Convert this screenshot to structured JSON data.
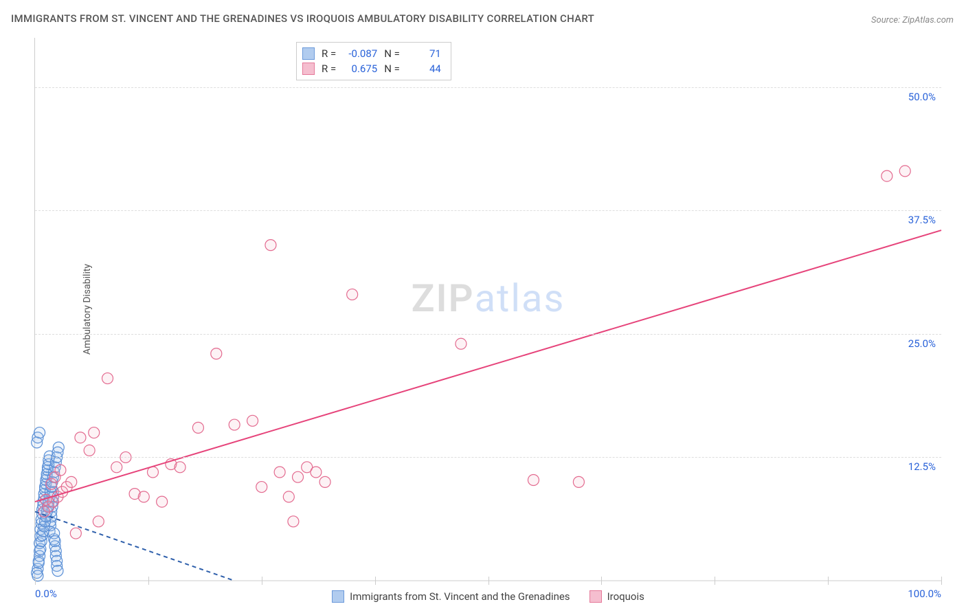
{
  "title": "IMMIGRANTS FROM ST. VINCENT AND THE GRENADINES VS IROQUOIS AMBULATORY DISABILITY CORRELATION CHART",
  "source": "Source: ZipAtlas.com",
  "y_axis_label": "Ambulatory Disability",
  "watermark_zip": "ZIP",
  "watermark_atlas": "atlas",
  "chart": {
    "type": "scatter",
    "background_color": "#ffffff",
    "grid_color": "#dddddd",
    "axis_color": "#cccccc",
    "label_color": "#2962d9",
    "x_range": [
      0,
      100
    ],
    "y_range": [
      0,
      55
    ],
    "y_ticks": [
      {
        "v": 12.5,
        "label": "12.5%"
      },
      {
        "v": 25.0,
        "label": "25.0%"
      },
      {
        "v": 37.5,
        "label": "37.5%"
      },
      {
        "v": 50.0,
        "label": "50.0%"
      }
    ],
    "x_ticks_minor": [
      0,
      12.5,
      25,
      37.5,
      50,
      62.5,
      75,
      87.5,
      100
    ],
    "x_tick_labels": [
      {
        "v": 0,
        "label": "0.0%"
      },
      {
        "v": 100,
        "label": "100.0%"
      }
    ],
    "marker_radius": 8,
    "marker_stroke_width": 1.2,
    "marker_fill_opacity": 0.18,
    "trend_line_width": 2,
    "series": [
      {
        "id": "svg_series",
        "name": "Immigrants from St. Vincent and the Grenadines",
        "stroke": "#5a8fd6",
        "fill": "#a9c7ee",
        "trend_stroke": "#2e5fab",
        "trend_dash": "6 5",
        "R": "-0.087",
        "N": "71",
        "trend": {
          "x1": 0,
          "y1": 7.0,
          "x2": 22,
          "y2": 0.0
        },
        "points": [
          [
            0.3,
            1.2
          ],
          [
            0.4,
            2.0
          ],
          [
            0.5,
            3.0
          ],
          [
            0.5,
            3.8
          ],
          [
            0.6,
            4.5
          ],
          [
            0.6,
            5.2
          ],
          [
            0.7,
            5.8
          ],
          [
            0.7,
            6.2
          ],
          [
            0.8,
            6.8
          ],
          [
            0.8,
            7.2
          ],
          [
            0.9,
            7.6
          ],
          [
            0.9,
            8.0
          ],
          [
            1.0,
            8.4
          ],
          [
            1.0,
            8.8
          ],
          [
            1.1,
            9.2
          ],
          [
            1.1,
            9.5
          ],
          [
            1.2,
            9.8
          ],
          [
            1.2,
            10.2
          ],
          [
            1.3,
            10.5
          ],
          [
            1.3,
            10.8
          ],
          [
            1.4,
            11.2
          ],
          [
            1.4,
            11.5
          ],
          [
            1.5,
            11.8
          ],
          [
            1.5,
            12.2
          ],
          [
            1.6,
            12.6
          ],
          [
            1.6,
            5.0
          ],
          [
            1.7,
            5.6
          ],
          [
            1.7,
            6.0
          ],
          [
            1.8,
            6.5
          ],
          [
            1.8,
            7.0
          ],
          [
            1.9,
            7.5
          ],
          [
            1.9,
            8.0
          ],
          [
            2.0,
            8.5
          ],
          [
            2.0,
            9.0
          ],
          [
            2.1,
            4.2
          ],
          [
            2.1,
            4.8
          ],
          [
            2.2,
            3.5
          ],
          [
            2.2,
            4.0
          ],
          [
            2.3,
            3.0
          ],
          [
            2.3,
            2.5
          ],
          [
            2.4,
            2.0
          ],
          [
            2.4,
            1.5
          ],
          [
            2.5,
            1.0
          ],
          [
            2.6,
            13.5
          ],
          [
            0.2,
            0.8
          ],
          [
            0.3,
            0.5
          ],
          [
            0.4,
            1.8
          ],
          [
            0.5,
            2.5
          ],
          [
            0.6,
            3.2
          ],
          [
            0.7,
            4.0
          ],
          [
            0.8,
            4.6
          ],
          [
            0.9,
            5.0
          ],
          [
            1.0,
            5.5
          ],
          [
            1.1,
            6.0
          ],
          [
            1.2,
            6.5
          ],
          [
            1.3,
            7.0
          ],
          [
            1.4,
            7.5
          ],
          [
            1.5,
            8.0
          ],
          [
            1.6,
            8.5
          ],
          [
            1.7,
            9.0
          ],
          [
            1.8,
            9.5
          ],
          [
            1.9,
            10.0
          ],
          [
            2.0,
            10.5
          ],
          [
            2.1,
            11.0
          ],
          [
            2.2,
            11.5
          ],
          [
            2.3,
            12.0
          ],
          [
            2.4,
            12.5
          ],
          [
            2.5,
            13.0
          ],
          [
            0.2,
            14.0
          ],
          [
            0.3,
            14.5
          ],
          [
            0.5,
            15.0
          ]
        ]
      },
      {
        "id": "iroquois_series",
        "name": "Iroquois",
        "stroke": "#e36a8f",
        "fill": "#f5b8ca",
        "trend_stroke": "#e6437a",
        "trend_dash": "none",
        "R": "0.675",
        "N": "44",
        "trend": {
          "x1": 0,
          "y1": 8.0,
          "x2": 100,
          "y2": 35.5
        },
        "points": [
          [
            1.5,
            7.5
          ],
          [
            2.0,
            8.0
          ],
          [
            2.5,
            8.5
          ],
          [
            3.0,
            9.0
          ],
          [
            3.5,
            9.5
          ],
          [
            4.0,
            10.0
          ],
          [
            5.0,
            14.5
          ],
          [
            6.0,
            13.2
          ],
          [
            7.0,
            6.0
          ],
          [
            8.0,
            20.5
          ],
          [
            9.0,
            11.5
          ],
          [
            10.0,
            12.5
          ],
          [
            11.0,
            8.8
          ],
          [
            12.0,
            8.5
          ],
          [
            13.0,
            11.0
          ],
          [
            14.0,
            8.0
          ],
          [
            15.0,
            11.8
          ],
          [
            16.0,
            11.5
          ],
          [
            18.0,
            15.5
          ],
          [
            20.0,
            23.0
          ],
          [
            22.0,
            15.8
          ],
          [
            24.0,
            16.2
          ],
          [
            25.0,
            9.5
          ],
          [
            26.0,
            34.0
          ],
          [
            27.0,
            11.0
          ],
          [
            28.0,
            8.5
          ],
          [
            29.0,
            10.5
          ],
          [
            30.0,
            11.5
          ],
          [
            31.0,
            11.0
          ],
          [
            32.0,
            10.0
          ],
          [
            28.5,
            6.0
          ],
          [
            35.0,
            29.0
          ],
          [
            47.0,
            24.0
          ],
          [
            55.0,
            10.2
          ],
          [
            60.0,
            10.0
          ],
          [
            4.5,
            4.8
          ],
          [
            6.5,
            15.0
          ],
          [
            1.0,
            7.0
          ],
          [
            1.2,
            8.2
          ],
          [
            1.8,
            9.8
          ],
          [
            2.2,
            10.5
          ],
          [
            2.8,
            11.2
          ],
          [
            94.0,
            41.0
          ],
          [
            96.0,
            41.5
          ]
        ]
      }
    ],
    "stats_labels": {
      "R": "R =",
      "N": "N ="
    }
  },
  "bottom_legend": [
    {
      "series": 0,
      "label": "Immigrants from St. Vincent and the Grenadines"
    },
    {
      "series": 1,
      "label": "Iroquois"
    }
  ]
}
